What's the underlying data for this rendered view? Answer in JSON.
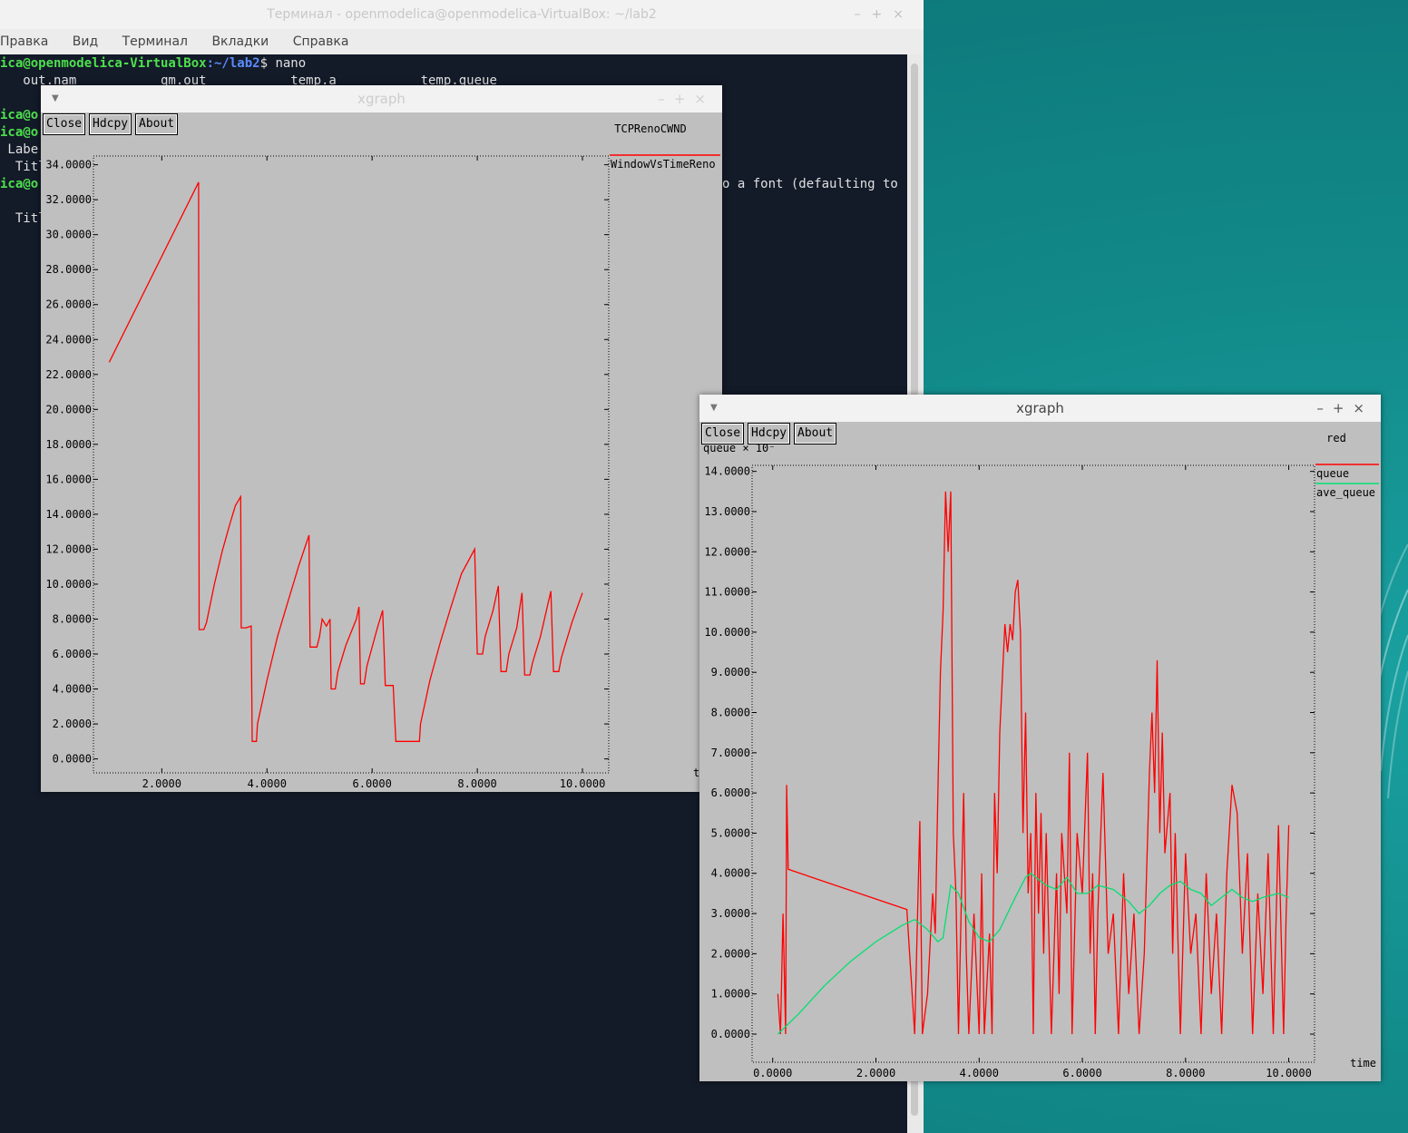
{
  "terminal": {
    "title": "Терминал - openmodelica@openmodelica-VirtualBox: ~/lab2",
    "menu": [
      "Правка",
      "Вид",
      "Терминал",
      "Вкладки",
      "Справка"
    ],
    "prompt_user": "ica@openmodelica-VirtualBox",
    "prompt_path": ":~/lab2",
    "prompt_cmd": "$ nano",
    "ls_line": "   out.nam           qm.out           temp.a           temp.queue",
    "frag1": "ica@o",
    "frag2": "ica@o",
    "frag3": " Labe",
    "frag4": "  Titl",
    "frag5": "ica@o",
    "frag6": "  Titl",
    "font_warning": "o a font (defaulting to"
  },
  "xgraph1": {
    "window_title": "xgraph",
    "buttons": {
      "close": "Close",
      "hdcpy": "Hdcpy",
      "about": "About"
    },
    "title": "TCPRenoCWND",
    "x_unit_fragment": "t",
    "chart_data": {
      "type": "line",
      "title": "TCPRenoCWND",
      "xlim": [
        0.7,
        10.5
      ],
      "ylim": [
        -0.8,
        34.5
      ],
      "x_ticks": [
        "2.0000",
        "4.0000",
        "6.0000",
        "8.0000",
        "10.0000"
      ],
      "y_ticks": [
        "0.0000",
        "2.0000",
        "4.0000",
        "6.0000",
        "8.0000",
        "10.0000",
        "12.0000",
        "14.0000",
        "16.0000",
        "18.0000",
        "20.0000",
        "22.0000",
        "24.0000",
        "26.0000",
        "28.0000",
        "30.0000",
        "32.0000",
        "34.0000"
      ],
      "series": [
        {
          "name": "WindowVsTimeReno",
          "color": "#ff0000",
          "points": [
            [
              1.0,
              22.7
            ],
            [
              2.7,
              33.0
            ],
            [
              2.71,
              7.4
            ],
            [
              2.8,
              7.4
            ],
            [
              2.85,
              7.8
            ],
            [
              3.0,
              10.0
            ],
            [
              3.15,
              11.9
            ],
            [
              3.3,
              13.5
            ],
            [
              3.4,
              14.5
            ],
            [
              3.5,
              15.0
            ],
            [
              3.51,
              7.5
            ],
            [
              3.6,
              7.5
            ],
            [
              3.7,
              7.6
            ],
            [
              3.72,
              1.0
            ],
            [
              3.8,
              1.0
            ],
            [
              3.82,
              2.0
            ],
            [
              4.0,
              4.5
            ],
            [
              4.2,
              7.0
            ],
            [
              4.4,
              9.0
            ],
            [
              4.6,
              11.0
            ],
            [
              4.8,
              12.8
            ],
            [
              4.82,
              6.4
            ],
            [
              4.95,
              6.4
            ],
            [
              5.0,
              7.0
            ],
            [
              5.05,
              8.0
            ],
            [
              5.13,
              7.6
            ],
            [
              5.2,
              8.0
            ],
            [
              5.22,
              4.0
            ],
            [
              5.3,
              4.0
            ],
            [
              5.35,
              5.0
            ],
            [
              5.5,
              6.5
            ],
            [
              5.7,
              8.0
            ],
            [
              5.75,
              8.7
            ],
            [
              5.78,
              4.3
            ],
            [
              5.85,
              4.3
            ],
            [
              5.9,
              5.3
            ],
            [
              6.1,
              7.5
            ],
            [
              6.2,
              8.5
            ],
            [
              6.25,
              4.2
            ],
            [
              6.4,
              4.2
            ],
            [
              6.45,
              1.0
            ],
            [
              6.9,
              1.0
            ],
            [
              6.92,
              2.0
            ],
            [
              7.1,
              4.5
            ],
            [
              7.3,
              6.7
            ],
            [
              7.5,
              8.7
            ],
            [
              7.7,
              10.6
            ],
            [
              7.95,
              12.0
            ],
            [
              8.0,
              6.0
            ],
            [
              8.1,
              6.0
            ],
            [
              8.15,
              7.0
            ],
            [
              8.3,
              8.5
            ],
            [
              8.4,
              9.9
            ],
            [
              8.45,
              5.0
            ],
            [
              8.55,
              5.0
            ],
            [
              8.6,
              6.0
            ],
            [
              8.75,
              7.5
            ],
            [
              8.85,
              9.5
            ],
            [
              8.9,
              4.8
            ],
            [
              9.0,
              4.8
            ],
            [
              9.05,
              5.5
            ],
            [
              9.2,
              7.0
            ],
            [
              9.4,
              9.6
            ],
            [
              9.45,
              5.0
            ],
            [
              9.55,
              5.0
            ],
            [
              9.6,
              5.8
            ],
            [
              9.8,
              7.8
            ],
            [
              10.0,
              9.5
            ]
          ]
        }
      ]
    }
  },
  "xgraph2": {
    "window_title": "xgraph",
    "buttons": {
      "close": "Close",
      "hdcpy": "Hdcpy",
      "about": "About"
    },
    "title": "red",
    "y_unit": "queue × 10⁻",
    "x_unit": "time",
    "chart_data": {
      "type": "line",
      "title": "red",
      "xlabel": "time",
      "ylabel": "queue × 10⁻",
      "xlim": [
        -0.4,
        10.5
      ],
      "ylim": [
        -0.7,
        14.15
      ],
      "x_ticks": [
        "0.0000",
        "2.0000",
        "4.0000",
        "6.0000",
        "8.0000",
        "10.0000"
      ],
      "y_ticks": [
        "0.0000",
        "1.0000",
        "2.0000",
        "3.0000",
        "4.0000",
        "5.0000",
        "6.0000",
        "7.0000",
        "8.0000",
        "9.0000",
        "10.0000",
        "11.0000",
        "12.0000",
        "13.0000",
        "14.0000"
      ],
      "series": [
        {
          "name": "queue",
          "color": "#ff0000",
          "points": [
            [
              0.1,
              1.0
            ],
            [
              0.15,
              0
            ],
            [
              0.2,
              3.0
            ],
            [
              0.25,
              0
            ],
            [
              0.27,
              6.2
            ],
            [
              0.3,
              4.1
            ],
            [
              2.6,
              3.1
            ],
            [
              2.75,
              0
            ],
            [
              2.85,
              5.3
            ],
            [
              2.9,
              0
            ],
            [
              3.0,
              1.0
            ],
            [
              3.1,
              3.5
            ],
            [
              3.15,
              2.5
            ],
            [
              3.2,
              6.0
            ],
            [
              3.25,
              9.0
            ],
            [
              3.3,
              10.5
            ],
            [
              3.35,
              13.5
            ],
            [
              3.4,
              12.0
            ],
            [
              3.45,
              13.5
            ],
            [
              3.5,
              5.0
            ],
            [
              3.55,
              3.5
            ],
            [
              3.6,
              0
            ],
            [
              3.7,
              6.0
            ],
            [
              3.75,
              2.0
            ],
            [
              3.8,
              0
            ],
            [
              3.9,
              3.0
            ],
            [
              4.0,
              0
            ],
            [
              4.05,
              4.0
            ],
            [
              4.1,
              0
            ],
            [
              4.2,
              2.5
            ],
            [
              4.25,
              0
            ],
            [
              4.3,
              6.0
            ],
            [
              4.35,
              4.0
            ],
            [
              4.4,
              7.5
            ],
            [
              4.5,
              10.2
            ],
            [
              4.55,
              9.5
            ],
            [
              4.6,
              10.2
            ],
            [
              4.65,
              9.8
            ],
            [
              4.7,
              11.0
            ],
            [
              4.75,
              11.3
            ],
            [
              4.8,
              10.0
            ],
            [
              4.85,
              5.0
            ],
            [
              4.9,
              8.0
            ],
            [
              4.95,
              3.5
            ],
            [
              5.0,
              5.0
            ],
            [
              5.05,
              0
            ],
            [
              5.1,
              6.0
            ],
            [
              5.15,
              3.0
            ],
            [
              5.2,
              5.5
            ],
            [
              5.25,
              2.0
            ],
            [
              5.3,
              5.0
            ],
            [
              5.4,
              0
            ],
            [
              5.5,
              4.0
            ],
            [
              5.55,
              1.0
            ],
            [
              5.6,
              5.0
            ],
            [
              5.7,
              3.0
            ],
            [
              5.75,
              7.0
            ],
            [
              5.8,
              0
            ],
            [
              5.9,
              5.0
            ],
            [
              6.0,
              3.5
            ],
            [
              6.1,
              7.0
            ],
            [
              6.15,
              2.0
            ],
            [
              6.2,
              4.0
            ],
            [
              6.25,
              0
            ],
            [
              6.3,
              3.0
            ],
            [
              6.4,
              6.5
            ],
            [
              6.5,
              2.0
            ],
            [
              6.6,
              3.0
            ],
            [
              6.7,
              0
            ],
            [
              6.8,
              4.0
            ],
            [
              6.9,
              1.0
            ],
            [
              7.0,
              3.0
            ],
            [
              7.1,
              0
            ],
            [
              7.2,
              2.0
            ],
            [
              7.3,
              6.5
            ],
            [
              7.35,
              8.0
            ],
            [
              7.4,
              6.0
            ],
            [
              7.45,
              9.3
            ],
            [
              7.5,
              5.0
            ],
            [
              7.55,
              7.5
            ],
            [
              7.6,
              4.5
            ],
            [
              7.7,
              6.0
            ],
            [
              7.75,
              2.0
            ],
            [
              7.8,
              5.0
            ],
            [
              7.9,
              0
            ],
            [
              8.0,
              4.5
            ],
            [
              8.1,
              2.0
            ],
            [
              8.2,
              3.0
            ],
            [
              8.3,
              0
            ],
            [
              8.4,
              4.0
            ],
            [
              8.5,
              1.0
            ],
            [
              8.6,
              3.0
            ],
            [
              8.7,
              0
            ],
            [
              8.8,
              4.0
            ],
            [
              8.9,
              6.2
            ],
            [
              9.0,
              5.5
            ],
            [
              9.1,
              2.0
            ],
            [
              9.2,
              4.5
            ],
            [
              9.3,
              0
            ],
            [
              9.4,
              3.5
            ],
            [
              9.5,
              1.0
            ],
            [
              9.6,
              4.5
            ],
            [
              9.7,
              0
            ],
            [
              9.8,
              5.2
            ],
            [
              9.9,
              0
            ],
            [
              9.95,
              3.0
            ],
            [
              10.0,
              5.2
            ]
          ]
        },
        {
          "name": "ave_queue",
          "color": "#00e070",
          "points": [
            [
              0.1,
              0.0
            ],
            [
              0.5,
              0.5
            ],
            [
              1.0,
              1.2
            ],
            [
              1.5,
              1.8
            ],
            [
              2.0,
              2.3
            ],
            [
              2.5,
              2.7
            ],
            [
              2.75,
              2.85
            ],
            [
              3.0,
              2.6
            ],
            [
              3.2,
              2.3
            ],
            [
              3.3,
              2.4
            ],
            [
              3.45,
              3.7
            ],
            [
              3.6,
              3.5
            ],
            [
              3.8,
              2.8
            ],
            [
              4.0,
              2.4
            ],
            [
              4.2,
              2.3
            ],
            [
              4.4,
              2.6
            ],
            [
              4.7,
              3.4
            ],
            [
              4.9,
              3.9
            ],
            [
              5.0,
              4.0
            ],
            [
              5.3,
              3.7
            ],
            [
              5.5,
              3.6
            ],
            [
              5.7,
              3.9
            ],
            [
              5.9,
              3.5
            ],
            [
              6.1,
              3.5
            ],
            [
              6.3,
              3.7
            ],
            [
              6.6,
              3.6
            ],
            [
              6.9,
              3.3
            ],
            [
              7.1,
              3.0
            ],
            [
              7.3,
              3.2
            ],
            [
              7.5,
              3.5
            ],
            [
              7.7,
              3.7
            ],
            [
              7.9,
              3.8
            ],
            [
              8.1,
              3.6
            ],
            [
              8.3,
              3.5
            ],
            [
              8.5,
              3.2
            ],
            [
              8.7,
              3.4
            ],
            [
              8.9,
              3.6
            ],
            [
              9.1,
              3.4
            ],
            [
              9.3,
              3.3
            ],
            [
              9.5,
              3.4
            ],
            [
              9.8,
              3.5
            ],
            [
              10.0,
              3.4
            ]
          ]
        }
      ]
    }
  }
}
